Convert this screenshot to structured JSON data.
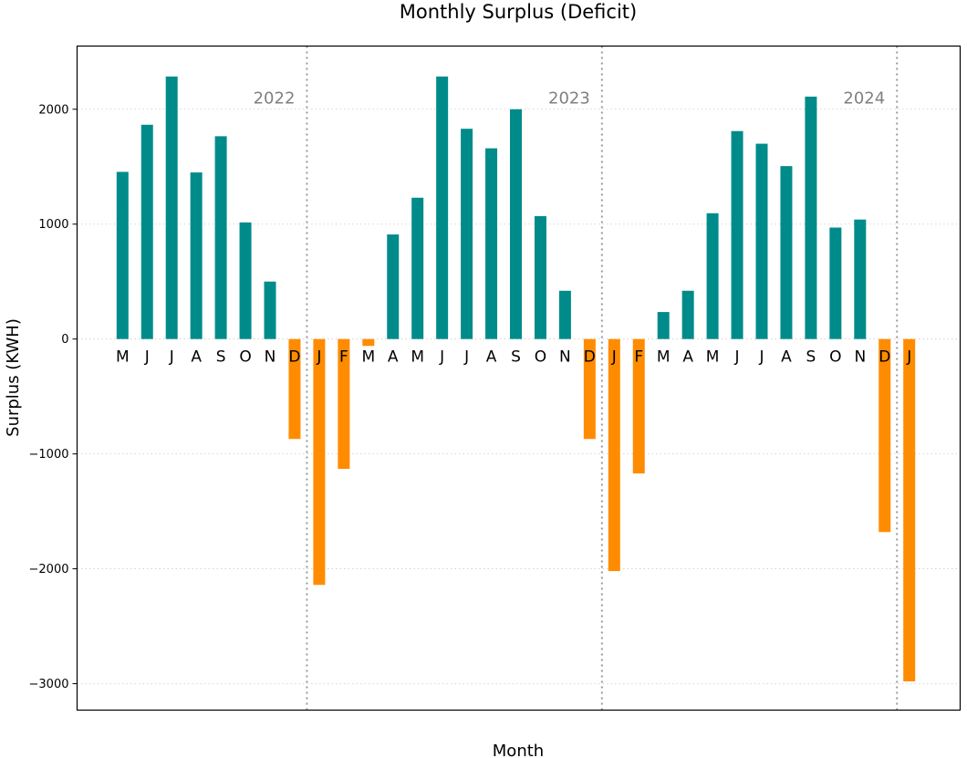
{
  "chart_data": {
    "type": "bar",
    "title": "Monthly Surplus (Deficit)",
    "xlabel": "Month",
    "ylabel": "Surplus (KWH)",
    "ylim": [
      -3230,
      2550
    ],
    "yticks": [
      2000,
      1000,
      0,
      -1000,
      -2000,
      -3000
    ],
    "ytick_labels": [
      "2000",
      "1000",
      "0",
      "−1000",
      "−2000",
      "−3000"
    ],
    "grid": "horizontal dotted",
    "colors": {
      "positive": "#008B8B",
      "negative": "#FF8C00",
      "separator": "#999999"
    },
    "categories": [
      "M",
      "J",
      "J",
      "A",
      "S",
      "O",
      "N",
      "D",
      "J",
      "F",
      "M",
      "A",
      "M",
      "J",
      "J",
      "A",
      "S",
      "O",
      "N",
      "D",
      "J",
      "F",
      "M",
      "A",
      "M",
      "J",
      "J",
      "A",
      "S",
      "O",
      "N",
      "D",
      "J"
    ],
    "values": [
      1455,
      1865,
      2285,
      1450,
      1765,
      1015,
      500,
      -870,
      -2140,
      -1130,
      -60,
      910,
      1230,
      2285,
      1830,
      1660,
      2000,
      1070,
      420,
      -870,
      -2020,
      -1170,
      235,
      420,
      1095,
      1810,
      1700,
      1505,
      2110,
      970,
      1040,
      -1680,
      -2980
    ],
    "year_labels": [
      "2022",
      "2023",
      "2024"
    ]
  }
}
